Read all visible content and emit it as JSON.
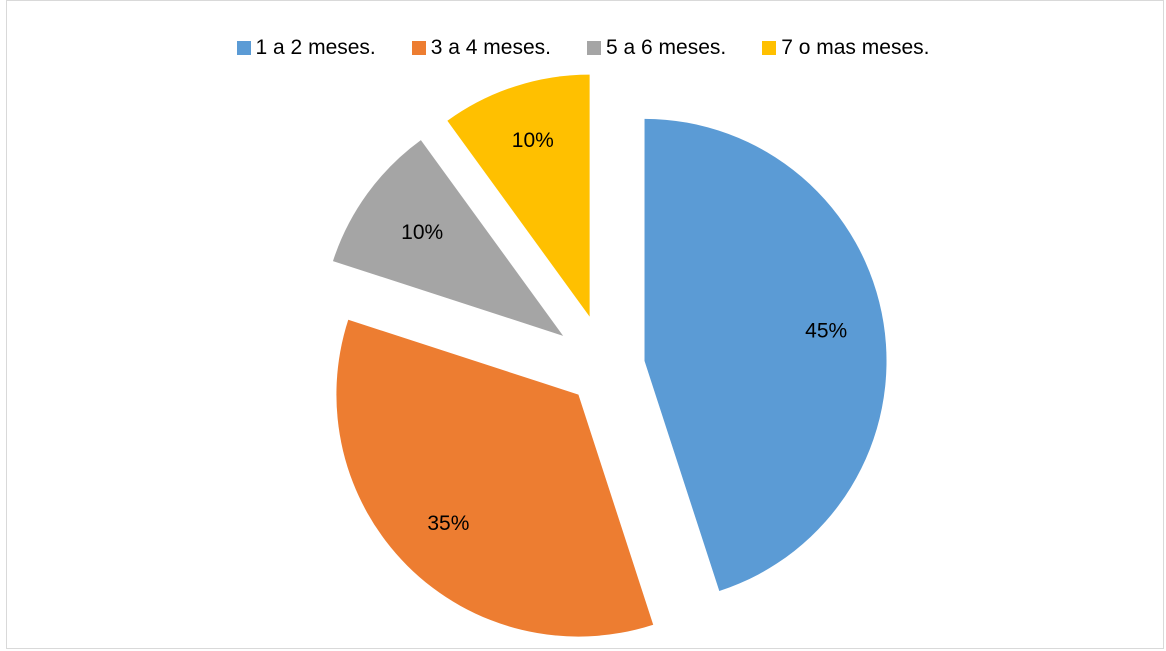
{
  "chart_data": {
    "type": "pie",
    "title": "",
    "categories": [
      "1 a 2 meses.",
      "3 a 4 meses.",
      "5 a 6 meses.",
      "7 o mas meses."
    ],
    "values": [
      45,
      35,
      10,
      10
    ],
    "labels": [
      "45%",
      "35%",
      "10%",
      "10%"
    ],
    "colors": [
      "#5b9bd5",
      "#ed7d31",
      "#a5a5a5",
      "#ffc000"
    ],
    "exploded": true,
    "legend_position": "top"
  }
}
